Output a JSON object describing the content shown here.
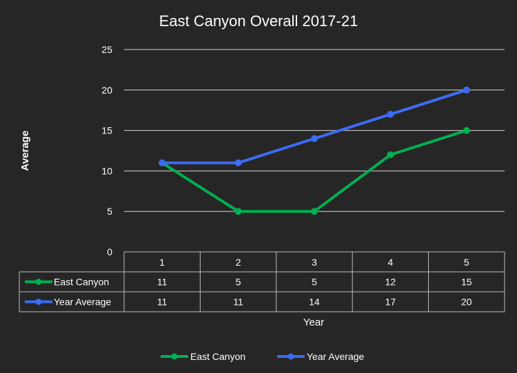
{
  "chart_data": {
    "type": "line",
    "title": "East Canyon Overall 2017-21",
    "xlabel": "Year",
    "ylabel": "Average",
    "categories": [
      "1",
      "2",
      "3",
      "4",
      "5"
    ],
    "ylim": [
      0,
      25
    ],
    "yticks": [
      "0",
      "5",
      "10",
      "15",
      "20",
      "25"
    ],
    "grid": true,
    "legend_position": "bottom",
    "data_table": true,
    "series": [
      {
        "name": "East Canyon",
        "values": [
          11,
          5,
          5,
          12,
          15
        ],
        "color": "#00b050"
      },
      {
        "name": "Year Average",
        "values": [
          11,
          11,
          14,
          17,
          20
        ],
        "color": "#3c6cf5"
      }
    ]
  }
}
